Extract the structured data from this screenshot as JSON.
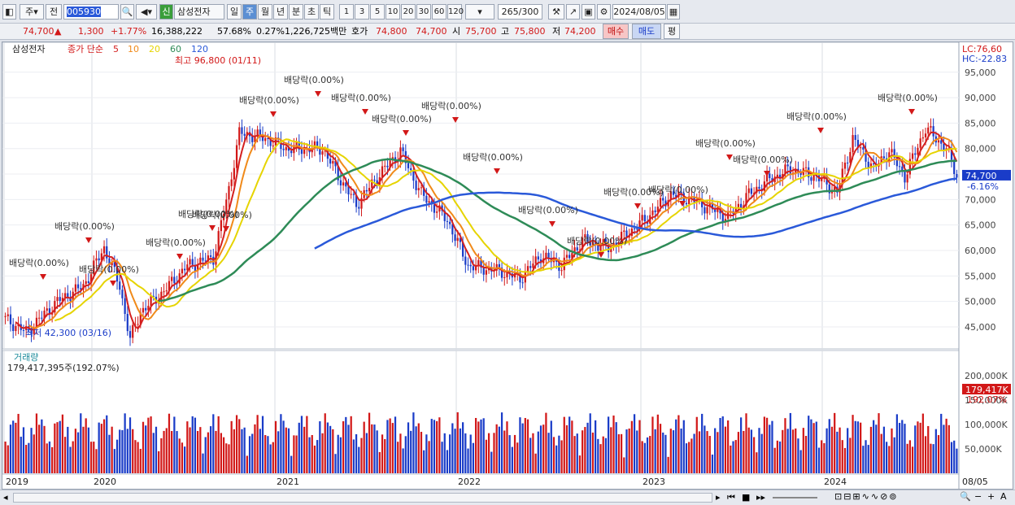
{
  "toolbar": {
    "mode": "주",
    "jeon": "전",
    "code": "005930",
    "shin": "신",
    "name": "삼성전자",
    "periods": [
      "일",
      "주",
      "월",
      "년",
      "분",
      "초",
      "틱"
    ],
    "active_period": "주",
    "nums": [
      "1",
      "3",
      "5",
      "10",
      "20",
      "30",
      "60",
      "120"
    ],
    "count": "265",
    "total": "/300",
    "date": "2024/08/05"
  },
  "quote": {
    "price": "74,700",
    "arrow": "▲",
    "change": "1,300",
    "pct": "+1.77%",
    "volume": "16,388,222",
    "vol_ratio": "57.68%",
    "turnover": "0.27%",
    "amount": "1,226,725백만",
    "hoga_label": "호가",
    "hoga1": "74,800",
    "hoga2": "74,700",
    "open_label": "시",
    "open": "75,700",
    "high_label": "고",
    "high": "75,800",
    "low_label": "저",
    "low": "74,200",
    "buy": "매수",
    "sell": "매도",
    "pyeong": "평"
  },
  "legend": {
    "name": "삼성전자",
    "type": "종가 단순",
    "mas": [
      {
        "p": "5",
        "c": "#d42020"
      },
      {
        "p": "10",
        "c": "#f08a1a"
      },
      {
        "p": "20",
        "c": "#e6d400"
      },
      {
        "p": "60",
        "c": "#2e8b57"
      },
      {
        "p": "120",
        "c": "#2a59d9"
      }
    ]
  },
  "right_labels": {
    "lc": "LC:76,60",
    "hc": "HC:-22.83",
    "current": "74,700",
    "current_pct": "-6.16%",
    "vol_current": "179,417K",
    "vol_pct": "192.07%"
  },
  "volume_panel": {
    "title": "거래량",
    "value": "179,417,395주(192.07%)"
  },
  "extremes": {
    "high": "최고 96,800 (01/11)",
    "low": "최저 42,300 (03/16)"
  },
  "dividend_label": "배당락(0.00%)",
  "bottom_date": "08/05",
  "chart_data": {
    "type": "candlestick",
    "x_labels": [
      "2019",
      "2020",
      "2021",
      "2022",
      "2023",
      "2024"
    ],
    "y_ticks": [
      45000,
      50000,
      55000,
      60000,
      65000,
      70000,
      75000,
      80000,
      85000,
      90000,
      95000
    ],
    "ylim": [
      41000,
      98000
    ],
    "vol_ticks": [
      "50,000K",
      "100,000K",
      "150,000K",
      "200,000K"
    ],
    "anchors": [
      [
        0,
        46500
      ],
      [
        8,
        44000
      ],
      [
        20,
        50000
      ],
      [
        30,
        53000
      ],
      [
        38,
        60500
      ],
      [
        44,
        53000
      ],
      [
        48,
        42500
      ],
      [
        52,
        48000
      ],
      [
        60,
        51500
      ],
      [
        70,
        57000
      ],
      [
        80,
        58500
      ],
      [
        86,
        72000
      ],
      [
        90,
        83000
      ],
      [
        96,
        82500
      ],
      [
        100,
        82000
      ],
      [
        108,
        80000
      ],
      [
        122,
        80000
      ],
      [
        130,
        73000
      ],
      [
        135,
        69000
      ],
      [
        144,
        75000
      ],
      [
        152,
        79500
      ],
      [
        160,
        71000
      ],
      [
        170,
        66000
      ],
      [
        178,
        57000
      ],
      [
        190,
        56000
      ],
      [
        198,
        54500
      ],
      [
        206,
        59000
      ],
      [
        214,
        57000
      ],
      [
        222,
        62000
      ],
      [
        232,
        60500
      ],
      [
        246,
        66000
      ],
      [
        256,
        71000
      ],
      [
        264,
        70000
      ],
      [
        272,
        68000
      ],
      [
        278,
        66500
      ],
      [
        286,
        71000
      ],
      [
        294,
        74000
      ],
      [
        302,
        76000
      ],
      [
        312,
        74500
      ],
      [
        320,
        71500
      ],
      [
        326,
        82000
      ],
      [
        334,
        76000
      ],
      [
        340,
        79500
      ],
      [
        346,
        74500
      ],
      [
        354,
        84000
      ],
      [
        362,
        80000
      ],
      [
        366,
        74700
      ]
    ],
    "n": 367
  }
}
